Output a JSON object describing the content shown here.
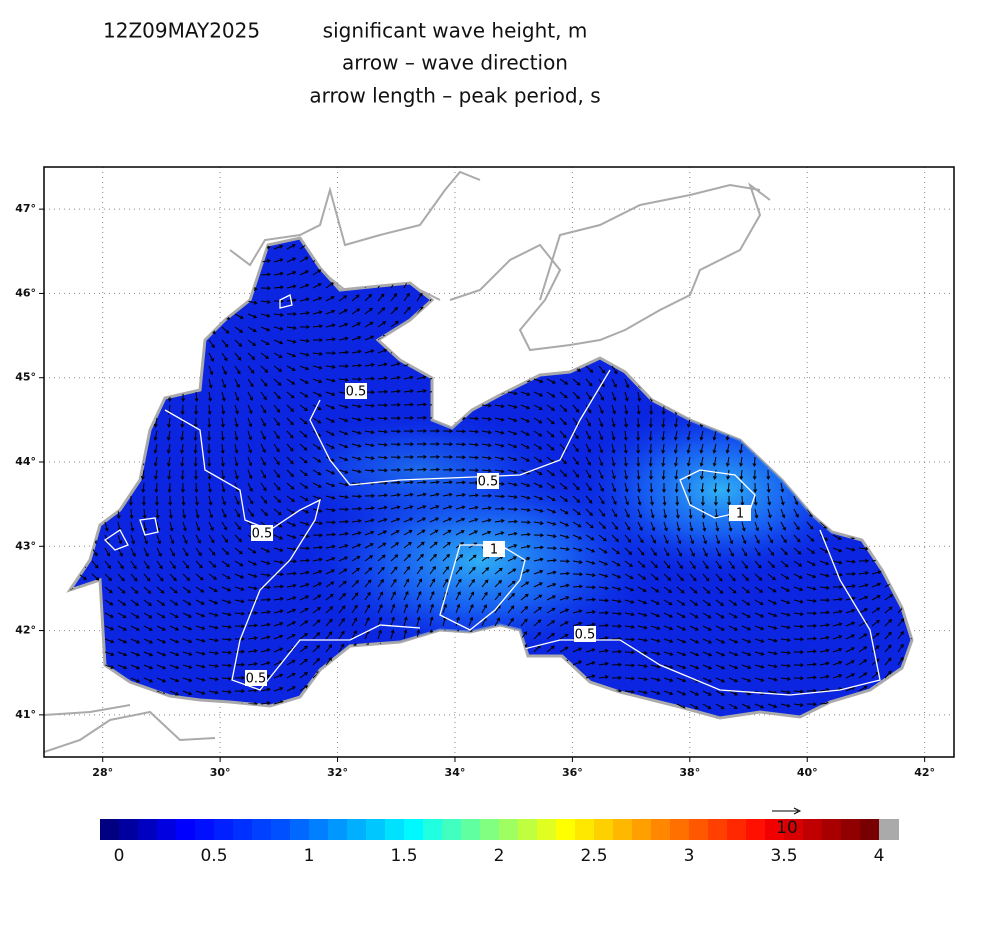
{
  "header": {
    "date": "12Z09MAY2025",
    "lines": [
      "significant wave height, m",
      "arrow – wave direction",
      "arrow length –  peak period, s"
    ]
  },
  "map": {
    "lon_range": [
      27,
      42.5
    ],
    "lat_range": [
      40.5,
      47.5
    ],
    "lon_ticks": [
      {
        "value": 28,
        "label": "28°"
      },
      {
        "value": 30,
        "label": "30°"
      },
      {
        "value": 32,
        "label": "32°"
      },
      {
        "value": 34,
        "label": "34°"
      },
      {
        "value": 36,
        "label": "36°"
      },
      {
        "value": 38,
        "label": "38°"
      },
      {
        "value": 40,
        "label": "40°"
      },
      {
        "value": 42,
        "label": "42°"
      }
    ],
    "lat_ticks": [
      {
        "value": 41,
        "label": "41°"
      },
      {
        "value": 42,
        "label": "42°"
      },
      {
        "value": 43,
        "label": "43°"
      },
      {
        "value": 44,
        "label": "44°"
      },
      {
        "value": 45,
        "label": "45°"
      },
      {
        "value": 46,
        "label": "46°"
      },
      {
        "value": 47,
        "label": "47°"
      }
    ],
    "contour_labels": [
      "0.5",
      "0.5",
      "0.5",
      "1",
      "1",
      "0.5",
      "0.5"
    ]
  },
  "colorbar": {
    "range": [
      -0.1,
      4
    ],
    "ticks": [
      {
        "value": 0,
        "label": "0"
      },
      {
        "value": 0.5,
        "label": "0.5"
      },
      {
        "value": 1,
        "label": "1"
      },
      {
        "value": 1.5,
        "label": "1.5"
      },
      {
        "value": 2,
        "label": "2"
      },
      {
        "value": 2.5,
        "label": "2.5"
      },
      {
        "value": 3,
        "label": "3"
      },
      {
        "value": 3.5,
        "label": "3.5"
      },
      {
        "value": 4,
        "label": "4"
      }
    ]
  },
  "reference_arrow": {
    "label": "10"
  }
}
